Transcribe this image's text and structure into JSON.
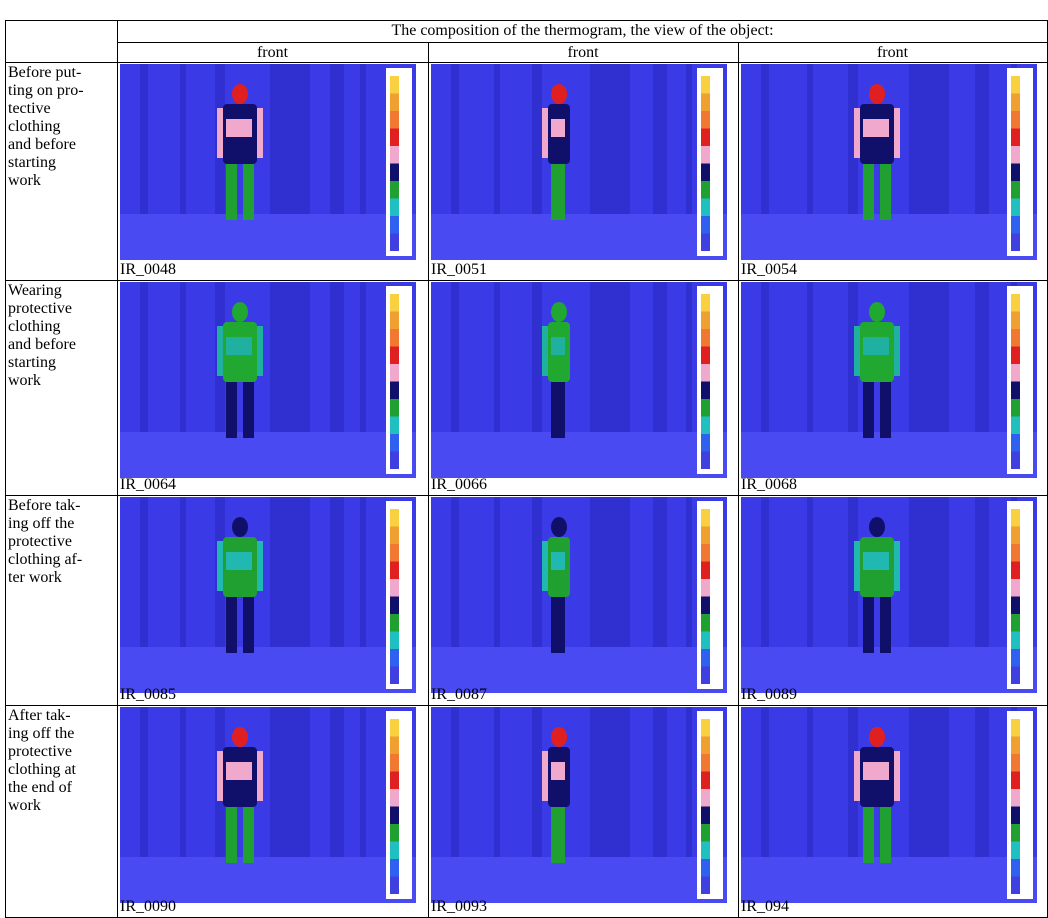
{
  "table": {
    "title": "The composition of the thermogram, the view of the object:",
    "views": [
      "front",
      "front",
      "front"
    ],
    "rows": [
      {
        "label": [
          "Before put-",
          "ting on pro-",
          "tective",
          "clothing",
          "and before",
          "starting",
          "work"
        ],
        "images": [
          "IR_0048",
          "IR_0051",
          "IR_0054"
        ]
      },
      {
        "label": [
          "Wearing",
          "protective",
          "clothing",
          "and before",
          "starting",
          "work"
        ],
        "images": [
          "IR_0064",
          "IR_0066",
          "IR_0068"
        ]
      },
      {
        "label": [
          "Before tak-",
          "ing off the",
          "protective",
          "clothing af-",
          "ter work"
        ],
        "images": [
          "IR_0085",
          "IR_0087",
          "IR_0089"
        ]
      },
      {
        "label": [
          "After tak-",
          "ing off the",
          "protective",
          "clothing at",
          "the end of",
          "work"
        ],
        "images": [
          "IR_0090",
          "IR_0093",
          "IR_094"
        ]
      }
    ]
  }
}
